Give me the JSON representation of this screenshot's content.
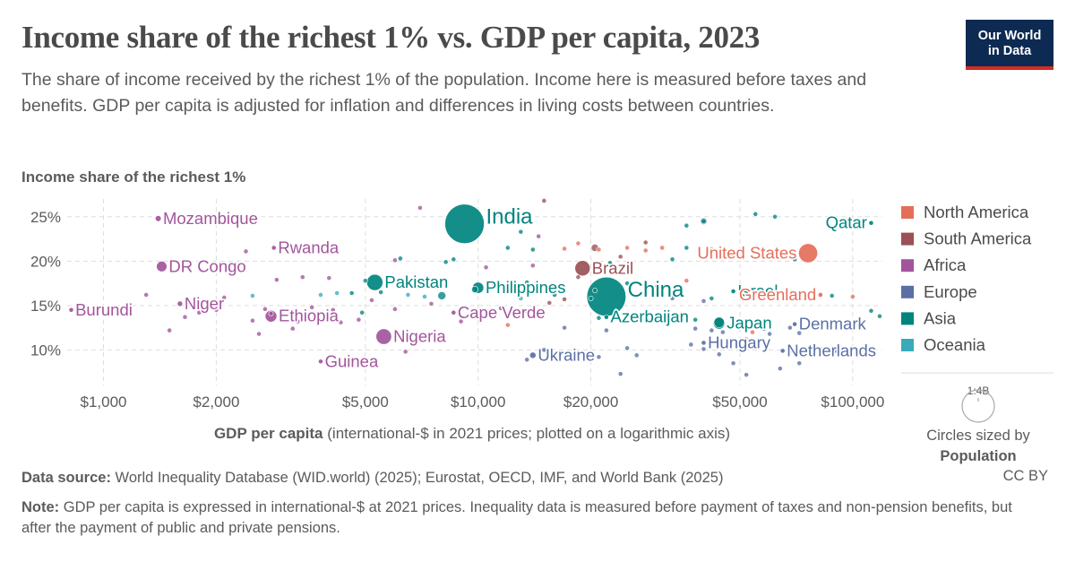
{
  "title": "Income share of the richest 1% vs. GDP per capita, 2023",
  "subtitle": "The share of income received by the richest 1% of the population. Income here is measured before taxes and benefits. GDP per capita is adjusted for inflation and differences in living costs between countries.",
  "logo": {
    "line1": "Our World",
    "line2": "in Data"
  },
  "footer": {
    "source_label": "Data source:",
    "source_text": "World Inequality Database (WID.world) (2025); Eurostat, OECD, IMF, and World Bank (2025)",
    "license": "CC BY",
    "note_label": "Note:",
    "note_text": "GDP per capita is expressed in international-$ at 2021 prices. Inequality data is measured before payment of taxes and non-pension benefits, but after the payment of public and private pensions."
  },
  "colors": {
    "North America": "#e56e5a",
    "South America": "#9a5054",
    "Africa": "#a2559c",
    "Europe": "#5b6fa5",
    "Asia": "#00847e",
    "Oceania": "#38aaba"
  },
  "size_legend": {
    "value_label": "1:4B",
    "caption_line1": "Circles sized by",
    "caption_line2": "Population"
  },
  "chart_data": {
    "type": "scatter",
    "ylabel": "Income share of the richest 1%",
    "xlabel_bold": "GDP per capita",
    "xlabel_rest": "(international-$ in 2021 prices; plotted on a logarithmic axis)",
    "x_scale": "log",
    "xlim": [
      800,
      120000
    ],
    "ylim": [
      6,
      27
    ],
    "x_ticks": [
      1000,
      2000,
      5000,
      10000,
      20000,
      50000,
      100000
    ],
    "x_tick_labels": [
      "$1,000",
      "$2,000",
      "$5,000",
      "$10,000",
      "$20,000",
      "$50,000",
      "$100,000"
    ],
    "y_ticks": [
      10,
      15,
      20,
      25
    ],
    "y_tick_labels": [
      "10%",
      "15%",
      "20%",
      "25%"
    ],
    "grid": true,
    "legend_position": "right",
    "legend": [
      "North America",
      "South America",
      "Africa",
      "Europe",
      "Asia",
      "Oceania"
    ],
    "labeled_points": [
      {
        "label": "India",
        "region": "Asia",
        "x": 9200,
        "y": 24.2,
        "pop": 1430
      },
      {
        "label": "China",
        "region": "Asia",
        "x": 22000,
        "y": 16,
        "pop": 1410
      },
      {
        "label": "United States",
        "region": "North America",
        "x": 76000,
        "y": 20.9,
        "pop": 335
      },
      {
        "label": "Brazil",
        "region": "South America",
        "x": 19000,
        "y": 19.2,
        "pop": 216
      },
      {
        "label": "Qatar",
        "region": "Asia",
        "x": 112000,
        "y": 24.3,
        "pop": 3
      },
      {
        "label": "Mozambique",
        "region": "Africa",
        "x": 1400,
        "y": 24.8,
        "pop": 33
      },
      {
        "label": "DR Congo",
        "region": "Africa",
        "x": 1430,
        "y": 19.4,
        "pop": 102
      },
      {
        "label": "Rwanda",
        "region": "Africa",
        "x": 2850,
        "y": 21.5,
        "pop": 14
      },
      {
        "label": "Burundi",
        "region": "Africa",
        "x": 820,
        "y": 14.5,
        "pop": 13
      },
      {
        "label": "Niger",
        "region": "Africa",
        "x": 1600,
        "y": 15.2,
        "pop": 27
      },
      {
        "label": "Ethiopia",
        "region": "Africa",
        "x": 2800,
        "y": 13.8,
        "pop": 126
      },
      {
        "label": "Nigeria",
        "region": "Africa",
        "x": 5600,
        "y": 11.5,
        "pop": 224
      },
      {
        "label": "Guinea",
        "region": "Africa",
        "x": 3800,
        "y": 8.7,
        "pop": 14
      },
      {
        "label": "Pakistan",
        "region": "Asia",
        "x": 5300,
        "y": 17.6,
        "pop": 240
      },
      {
        "label": "Philippines",
        "region": "Asia",
        "x": 10000,
        "y": 17,
        "pop": 117
      },
      {
        "label": "Cape Verde",
        "region": "Africa",
        "x": 8600,
        "y": 14.2,
        "pop": 1
      },
      {
        "label": "Azerbaijan",
        "region": "Asia",
        "x": 22000,
        "y": 13.7,
        "pop": 10
      },
      {
        "label": "Israel",
        "region": "Asia",
        "x": 48000,
        "y": 16.6,
        "pop": 9
      },
      {
        "label": "Japan",
        "region": "Asia",
        "x": 44000,
        "y": 13,
        "pop": 124
      },
      {
        "label": "Greenland",
        "region": "North America",
        "x": 82000,
        "y": 16.2,
        "pop": 0.06
      },
      {
        "label": "Denmark",
        "region": "Europe",
        "x": 70000,
        "y": 12.9,
        "pop": 6
      },
      {
        "label": "Ukraine",
        "region": "Europe",
        "x": 14000,
        "y": 9.4,
        "pop": 37
      },
      {
        "label": "Hungary",
        "region": "Europe",
        "x": 40000,
        "y": 10.8,
        "pop": 10
      },
      {
        "label": "Netherlands",
        "region": "Europe",
        "x": 65000,
        "y": 9.9,
        "pop": 18
      }
    ],
    "points": [
      {
        "region": "Asia",
        "x": 40000,
        "y": 24.5,
        "pop": 25
      },
      {
        "region": "Europe",
        "x": 40000,
        "y": 24.5,
        "pop": 45
      },
      {
        "region": "Asia",
        "x": 36000,
        "y": 24,
        "pop": 5
      },
      {
        "region": "Asia",
        "x": 55000,
        "y": 25.3,
        "pop": 5
      },
      {
        "region": "Asia",
        "x": 62000,
        "y": 25,
        "pop": 4
      },
      {
        "region": "Asia",
        "x": 70000,
        "y": 20.2,
        "pop": 4
      },
      {
        "region": "Asia",
        "x": 47000,
        "y": 20.8,
        "pop": 4
      },
      {
        "region": "Asia",
        "x": 36000,
        "y": 21.5,
        "pop": 3
      },
      {
        "region": "Asia",
        "x": 13000,
        "y": 23.3,
        "pop": 5
      },
      {
        "region": "Asia",
        "x": 14000,
        "y": 21.3,
        "pop": 4
      },
      {
        "region": "Asia",
        "x": 12000,
        "y": 21.5,
        "pop": 4
      },
      {
        "region": "Asia",
        "x": 8600,
        "y": 20.2,
        "pop": 4
      },
      {
        "region": "Asia",
        "x": 9800,
        "y": 16.8,
        "pop": 40
      },
      {
        "region": "Asia",
        "x": 8000,
        "y": 16.1,
        "pop": 60
      },
      {
        "region": "Asia",
        "x": 13500,
        "y": 17.6,
        "pop": 4
      },
      {
        "region": "Asia",
        "x": 16000,
        "y": 16.2,
        "pop": 6
      },
      {
        "region": "Asia",
        "x": 20500,
        "y": 16.7,
        "pop": 4
      },
      {
        "region": "Asia",
        "x": 25000,
        "y": 17.5,
        "pop": 4
      },
      {
        "region": "Asia",
        "x": 42000,
        "y": 15.8,
        "pop": 3
      },
      {
        "region": "Asia",
        "x": 50000,
        "y": 16.3,
        "pop": 4
      },
      {
        "region": "Asia",
        "x": 38000,
        "y": 13.4,
        "pop": 3
      },
      {
        "region": "Asia",
        "x": 44000,
        "y": 13.1,
        "pop": 100
      },
      {
        "region": "Asia",
        "x": 21000,
        "y": 13.6,
        "pop": 5
      },
      {
        "region": "Asia",
        "x": 20000,
        "y": 15.8,
        "pop": 4
      },
      {
        "region": "Asia",
        "x": 4600,
        "y": 16.4,
        "pop": 3
      },
      {
        "region": "Asia",
        "x": 4900,
        "y": 14.2,
        "pop": 3
      },
      {
        "region": "Asia",
        "x": 5500,
        "y": 16.5,
        "pop": 20
      },
      {
        "region": "Asia",
        "x": 112000,
        "y": 14.4,
        "pop": 3
      },
      {
        "region": "Asia",
        "x": 118000,
        "y": 13.8,
        "pop": 3
      },
      {
        "region": "Asia",
        "x": 88000,
        "y": 16.1,
        "pop": 3
      },
      {
        "region": "Asia",
        "x": 22500,
        "y": 19.8,
        "pop": 3
      },
      {
        "region": "Asia",
        "x": 8200,
        "y": 19.9,
        "pop": 3
      },
      {
        "region": "Asia",
        "x": 6200,
        "y": 20.3,
        "pop": 3
      },
      {
        "region": "Asia",
        "x": 33000,
        "y": 20.2,
        "pop": 3
      },
      {
        "region": "Asia",
        "x": 5000,
        "y": 17.8,
        "pop": 4
      },
      {
        "region": "Oceania",
        "x": 2500,
        "y": 16.1,
        "pop": 1
      },
      {
        "region": "Oceania",
        "x": 4200,
        "y": 16.4,
        "pop": 1
      },
      {
        "region": "Oceania",
        "x": 6500,
        "y": 16.2,
        "pop": 1
      },
      {
        "region": "Oceania",
        "x": 13000,
        "y": 15.8,
        "pop": 1
      },
      {
        "region": "Oceania",
        "x": 56000,
        "y": 16.5,
        "pop": 5
      },
      {
        "region": "Oceania",
        "x": 3800,
        "y": 16.2,
        "pop": 1
      },
      {
        "region": "Oceania",
        "x": 7200,
        "y": 16,
        "pop": 1
      },
      {
        "region": "North America",
        "x": 25000,
        "y": 21.5,
        "pop": 4
      },
      {
        "region": "North America",
        "x": 28000,
        "y": 21.2,
        "pop": 4
      },
      {
        "region": "North America",
        "x": 21000,
        "y": 21.3,
        "pop": 4
      },
      {
        "region": "North America",
        "x": 17000,
        "y": 21.4,
        "pop": 4
      },
      {
        "region": "North America",
        "x": 18500,
        "y": 22,
        "pop": 4
      },
      {
        "region": "North America",
        "x": 31000,
        "y": 21.5,
        "pop": 3
      },
      {
        "region": "North America",
        "x": 42000,
        "y": 21.3,
        "pop": 3
      },
      {
        "region": "North America",
        "x": 36000,
        "y": 17.8,
        "pop": 3
      },
      {
        "region": "North America",
        "x": 11000,
        "y": 17.5,
        "pop": 3
      },
      {
        "region": "North America",
        "x": 12000,
        "y": 12.8,
        "pop": 3
      },
      {
        "region": "North America",
        "x": 54000,
        "y": 12,
        "pop": 3
      },
      {
        "region": "North America",
        "x": 6800,
        "y": 17.8,
        "pop": 3
      },
      {
        "region": "North America",
        "x": 100000,
        "y": 16,
        "pop": 3
      },
      {
        "region": "South America",
        "x": 15000,
        "y": 26.8,
        "pop": 3
      },
      {
        "region": "South America",
        "x": 20500,
        "y": 21.5,
        "pop": 50
      },
      {
        "region": "South America",
        "x": 28000,
        "y": 22.1,
        "pop": 18
      },
      {
        "region": "South America",
        "x": 24000,
        "y": 20.5,
        "pop": 3
      },
      {
        "region": "South America",
        "x": 17000,
        "y": 15.7,
        "pop": 3
      },
      {
        "region": "South America",
        "x": 13500,
        "y": 14.4,
        "pop": 3
      },
      {
        "region": "South America",
        "x": 15500,
        "y": 15.3,
        "pop": 3
      },
      {
        "region": "South America",
        "x": 18500,
        "y": 18.2,
        "pop": 3
      },
      {
        "region": "Africa",
        "x": 2400,
        "y": 21.1,
        "pop": 4
      },
      {
        "region": "Africa",
        "x": 3400,
        "y": 18.2,
        "pop": 4
      },
      {
        "region": "Africa",
        "x": 2900,
        "y": 17.9,
        "pop": 5
      },
      {
        "region": "Africa",
        "x": 2100,
        "y": 15.9,
        "pop": 5
      },
      {
        "region": "Africa",
        "x": 1800,
        "y": 14.2,
        "pop": 4
      },
      {
        "region": "Africa",
        "x": 1650,
        "y": 13.7,
        "pop": 5
      },
      {
        "region": "Africa",
        "x": 2700,
        "y": 14.6,
        "pop": 4
      },
      {
        "region": "Africa",
        "x": 3300,
        "y": 13.2,
        "pop": 4
      },
      {
        "region": "Africa",
        "x": 3600,
        "y": 14.8,
        "pop": 4
      },
      {
        "region": "Africa",
        "x": 4100,
        "y": 14.5,
        "pop": 4
      },
      {
        "region": "Africa",
        "x": 4800,
        "y": 13.4,
        "pop": 4
      },
      {
        "region": "Africa",
        "x": 3200,
        "y": 12.4,
        "pop": 4
      },
      {
        "region": "Africa",
        "x": 2600,
        "y": 11.8,
        "pop": 4
      },
      {
        "region": "Africa",
        "x": 1500,
        "y": 12.2,
        "pop": 4
      },
      {
        "region": "Africa",
        "x": 5200,
        "y": 15.6,
        "pop": 4
      },
      {
        "region": "Africa",
        "x": 6000,
        "y": 14.6,
        "pop": 4
      },
      {
        "region": "Africa",
        "x": 7000,
        "y": 26,
        "pop": 4
      },
      {
        "region": "Africa",
        "x": 6000,
        "y": 20.1,
        "pop": 4
      },
      {
        "region": "Africa",
        "x": 10500,
        "y": 19.3,
        "pop": 4
      },
      {
        "region": "Africa",
        "x": 14500,
        "y": 22.8,
        "pop": 4
      },
      {
        "region": "Africa",
        "x": 14000,
        "y": 19.5,
        "pop": 4
      },
      {
        "region": "Africa",
        "x": 9000,
        "y": 13.2,
        "pop": 4
      },
      {
        "region": "Africa",
        "x": 12500,
        "y": 17,
        "pop": 4
      },
      {
        "region": "Africa",
        "x": 6400,
        "y": 9.8,
        "pop": 4
      },
      {
        "region": "Africa",
        "x": 4300,
        "y": 13.1,
        "pop": 4
      },
      {
        "region": "Africa",
        "x": 4000,
        "y": 18.1,
        "pop": 4
      },
      {
        "region": "Africa",
        "x": 2500,
        "y": 13.3,
        "pop": 4
      },
      {
        "region": "Africa",
        "x": 2000,
        "y": 14.5,
        "pop": 4
      },
      {
        "region": "Africa",
        "x": 1800,
        "y": 19.5,
        "pop": 4
      },
      {
        "region": "Africa",
        "x": 1300,
        "y": 16.2,
        "pop": 4
      },
      {
        "region": "Africa",
        "x": 2800,
        "y": 14.1,
        "pop": 4
      },
      {
        "region": "Africa",
        "x": 11500,
        "y": 14.7,
        "pop": 4
      },
      {
        "region": "Africa",
        "x": 7500,
        "y": 15.2,
        "pop": 4
      },
      {
        "region": "Europe",
        "x": 15000,
        "y": 10,
        "pop": 3
      },
      {
        "region": "Europe",
        "x": 13500,
        "y": 8.9,
        "pop": 3
      },
      {
        "region": "Europe",
        "x": 16000,
        "y": 9.3,
        "pop": 3
      },
      {
        "region": "Europe",
        "x": 21000,
        "y": 9.2,
        "pop": 3
      },
      {
        "region": "Europe",
        "x": 25000,
        "y": 10.2,
        "pop": 3
      },
      {
        "region": "Europe",
        "x": 26500,
        "y": 9.4,
        "pop": 3
      },
      {
        "region": "Europe",
        "x": 24000,
        "y": 7.3,
        "pop": 3
      },
      {
        "region": "Europe",
        "x": 37000,
        "y": 10.6,
        "pop": 3
      },
      {
        "region": "Europe",
        "x": 38000,
        "y": 12.4,
        "pop": 3
      },
      {
        "region": "Europe",
        "x": 42000,
        "y": 12.2,
        "pop": 4
      },
      {
        "region": "Europe",
        "x": 45000,
        "y": 12,
        "pop": 3
      },
      {
        "region": "Europe",
        "x": 52000,
        "y": 11.2,
        "pop": 3
      },
      {
        "region": "Europe",
        "x": 55000,
        "y": 12.6,
        "pop": 3
      },
      {
        "region": "Europe",
        "x": 58000,
        "y": 12.4,
        "pop": 3
      },
      {
        "region": "Europe",
        "x": 60000,
        "y": 11.8,
        "pop": 3
      },
      {
        "region": "Europe",
        "x": 68000,
        "y": 12.5,
        "pop": 20
      },
      {
        "region": "Europe",
        "x": 72000,
        "y": 11.9,
        "pop": 3
      },
      {
        "region": "Europe",
        "x": 68000,
        "y": 9.9,
        "pop": 3
      },
      {
        "region": "Europe",
        "x": 72000,
        "y": 8.5,
        "pop": 3
      },
      {
        "region": "Europe",
        "x": 82000,
        "y": 10.1,
        "pop": 3
      },
      {
        "region": "Europe",
        "x": 90000,
        "y": 9.9,
        "pop": 3
      },
      {
        "region": "Europe",
        "x": 64000,
        "y": 7.9,
        "pop": 3
      },
      {
        "region": "Europe",
        "x": 52000,
        "y": 7.2,
        "pop": 3
      },
      {
        "region": "Europe",
        "x": 48000,
        "y": 8.5,
        "pop": 3
      },
      {
        "region": "Europe",
        "x": 44000,
        "y": 9.5,
        "pop": 3
      },
      {
        "region": "Europe",
        "x": 40000,
        "y": 10.1,
        "pop": 3
      },
      {
        "region": "Europe",
        "x": 30000,
        "y": 17.2,
        "pop": 3
      },
      {
        "region": "Europe",
        "x": 33000,
        "y": 15.8,
        "pop": 3
      },
      {
        "region": "Europe",
        "x": 40000,
        "y": 15.5,
        "pop": 3
      },
      {
        "region": "Europe",
        "x": 22000,
        "y": 12.2,
        "pop": 3
      },
      {
        "region": "Europe",
        "x": 17000,
        "y": 12.5,
        "pop": 3
      }
    ]
  }
}
